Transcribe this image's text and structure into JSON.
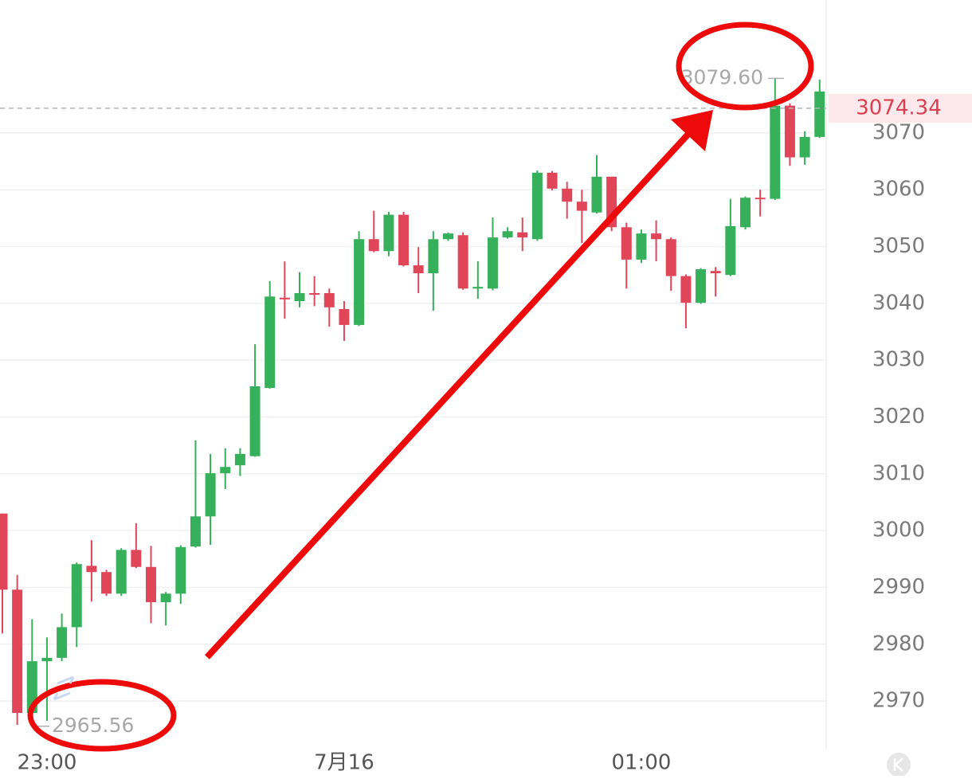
{
  "chart_data": {
    "type": "candlestick",
    "categories": [
      null,
      null,
      null,
      "23:00",
      null,
      null,
      null,
      null,
      null,
      null,
      null,
      null,
      null,
      null,
      null,
      null,
      null,
      null,
      null,
      null,
      null,
      null,
      null,
      "7月16",
      null,
      null,
      null,
      null,
      null,
      null,
      null,
      null,
      null,
      null,
      null,
      null,
      null,
      null,
      null,
      null,
      null,
      null,
      null,
      "01:00",
      null,
      null,
      null,
      null,
      null,
      null,
      null,
      null,
      null,
      null,
      null,
      null
    ],
    "open": [
      3003.0,
      2989.6,
      2967.9,
      2977.0,
      2977.6,
      2983.0,
      2993.8,
      2992.7,
      2988.9,
      2996.6,
      2993.6,
      2987.4,
      2988.9,
      2997.2,
      3002.5,
      3010.1,
      3011.5,
      3013.1,
      3025.1,
      3041.0,
      3040.4,
      3041.8,
      3041.8,
      3039.0,
      3036.2,
      3051.3,
      3049.2,
      3055.6,
      3046.7,
      3045.3,
      3051.3,
      3052.0,
      3042.6,
      3042.6,
      3051.6,
      3052.5,
      3051.3,
      3063.0,
      3060.2,
      3057.9,
      3056.0,
      3062.3,
      3053.4,
      3047.7,
      3052.3,
      3051.3,
      3044.8,
      3040.1,
      3045.7,
      3045.0,
      3053.4,
      3058.6,
      3058.4,
      3074.8,
      3065.7,
      3069.3
    ],
    "high": [
      3003.0,
      2992.2,
      2984.4,
      2981.2,
      2985.4,
      2994.4,
      2998.3,
      2993.1,
      2996.9,
      3001.3,
      2997.3,
      2989.2,
      2997.4,
      3015.9,
      3013.5,
      3014.5,
      3014.5,
      3032.8,
      3043.9,
      3047.4,
      3045.5,
      3044.8,
      3042.6,
      3040.4,
      3052.7,
      3056.3,
      3056.1,
      3056.1,
      3049.9,
      3052.7,
      3052.5,
      3052.5,
      3047.4,
      3055.1,
      3053.4,
      3055.1,
      3063.4,
      3063.3,
      3061.4,
      3060.0,
      3066.1,
      3062.3,
      3054.2,
      3053.0,
      3054.6,
      3051.6,
      3045.1,
      3046.2,
      3046.4,
      3058.4,
      3058.8,
      3060.0,
      3079.6,
      3075.2,
      3070.3,
      3079.4
    ],
    "low": [
      2981.9,
      2965.8,
      2965.56,
      2966.5,
      2977.0,
      2979.5,
      2987.5,
      2988.5,
      2988.5,
      2993.4,
      2983.7,
      2983.3,
      2987.1,
      2997.0,
      2997.5,
      3007.3,
      3009.6,
      3013.0,
      3025.0,
      3037.3,
      3039.3,
      3039.5,
      3035.9,
      3033.4,
      3036.0,
      3049.0,
      3048.3,
      3046.5,
      3041.8,
      3038.7,
      3051.0,
      3042.4,
      3040.8,
      3042.3,
      3051.4,
      3049.2,
      3051.0,
      3059.9,
      3054.9,
      3050.6,
      3055.8,
      3052.7,
      3042.6,
      3047.1,
      3047.4,
      3042.2,
      3035.6,
      3039.9,
      3041.2,
      3044.8,
      3053.0,
      3055.3,
      3058.2,
      3064.2,
      3064.4,
      3069.1
    ],
    "close": [
      2989.6,
      2967.9,
      2977.0,
      2977.6,
      2983.0,
      2994.1,
      2992.7,
      2988.9,
      2996.6,
      2993.6,
      2987.4,
      2988.9,
      2997.1,
      3002.5,
      3010.1,
      3011.2,
      3013.5,
      3025.4,
      3041.2,
      3040.7,
      3041.8,
      3041.6,
      3039.3,
      3036.2,
      3051.3,
      3049.2,
      3055.6,
      3046.7,
      3045.3,
      3051.3,
      3052.3,
      3042.6,
      3042.9,
      3051.6,
      3052.7,
      3051.6,
      3063.0,
      3060.2,
      3057.9,
      3056.3,
      3062.3,
      3053.4,
      3047.7,
      3052.3,
      3051.3,
      3044.8,
      3040.1,
      3046.0,
      3045.3,
      3053.6,
      3058.6,
      3058.4,
      3074.8,
      3065.7,
      3069.3,
      3077.3
    ],
    "up_color": "#36b05a",
    "down_color": "#e04658",
    "ylim": [
      2961.6,
      3093.4
    ],
    "yticks": [
      2970,
      2980,
      2990,
      3000,
      3010,
      3020,
      3030,
      3040,
      3050,
      3060,
      3070
    ],
    "grid": true,
    "last_price": 3074.34,
    "max_label": {
      "value": 3079.6,
      "label": "3079.60"
    },
    "min_label": 2965.56
  }
}
